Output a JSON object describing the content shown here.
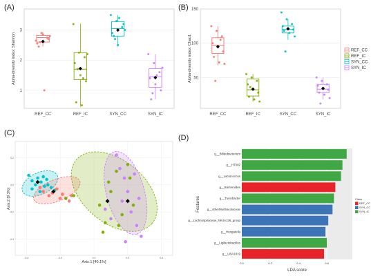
{
  "chart_data": [
    {
      "panel": "(A)",
      "type": "box",
      "ylabel": "Alpha-diversity index: Shannon",
      "yticks": [
        1,
        2,
        3
      ],
      "ylim": [
        0.4,
        3.7
      ],
      "categories": [
        "REF_CC",
        "REF_IC",
        "SYN_CC",
        "SYN_IC"
      ],
      "colors": [
        "#F8766D",
        "#7CAE00",
        "#00BFC4",
        "#C77CFF"
      ],
      "boxes": [
        {
          "q1": 2.6,
          "median": 2.75,
          "q3": 2.82,
          "whisker_low": 2.45,
          "whisker_high": 2.93,
          "mean": 2.62
        },
        {
          "q1": 1.35,
          "median": 1.7,
          "q3": 2.25,
          "whisker_low": 0.45,
          "whisker_high": 3.22,
          "mean": 1.72
        },
        {
          "q1": 2.8,
          "median": 3.05,
          "q3": 3.28,
          "whisker_low": 2.45,
          "whisker_high": 3.5,
          "mean": 3.0
        },
        {
          "q1": 1.1,
          "median": 1.45,
          "q3": 1.72,
          "whisker_low": 0.7,
          "whisker_high": 2.2,
          "mean": 1.42
        }
      ],
      "points": [
        [
          2.65,
          2.9,
          2.75,
          2.55,
          2.85,
          2.7,
          2.45,
          1.0,
          2.8,
          2.6
        ],
        [
          3.2,
          2.25,
          2.1,
          1.9,
          1.5,
          1.3,
          0.6,
          0.5,
          2.2,
          1.7,
          1.4
        ],
        [
          3.5,
          3.3,
          3.1,
          2.9,
          2.5,
          3.2,
          2.8,
          3.4,
          3.0,
          2.7
        ],
        [
          2.2,
          1.9,
          1.6,
          1.4,
          1.2,
          1.0,
          0.7,
          1.5,
          1.75,
          0.9
        ]
      ]
    },
    {
      "panel": "(B)",
      "type": "box",
      "ylabel": "Alpha-diversity index: Chao1",
      "yticks": [
        50,
        100,
        150
      ],
      "ylim": [
        5,
        150
      ],
      "categories": [
        "REF_CC",
        "REF_IC",
        "SYN_CC",
        "SYN_IC"
      ],
      "colors": [
        "#F8766D",
        "#7CAE00",
        "#00BFC4",
        "#C77CFF"
      ],
      "boxes": [
        {
          "q1": 85,
          "median": 97,
          "q3": 108,
          "whisker_low": 68,
          "whisker_high": 125,
          "mean": 95
        },
        {
          "q1": 23,
          "median": 32,
          "q3": 48,
          "whisker_low": 15,
          "whisker_high": 55,
          "mean": 33
        },
        {
          "q1": 115,
          "median": 120,
          "q3": 125,
          "whisker_low": 105,
          "whisker_high": 135,
          "mean": 121
        },
        {
          "q1": 28,
          "median": 33,
          "q3": 40,
          "whisker_low": 18,
          "whisker_high": 50,
          "mean": 34
        }
      ],
      "points": [
        [
          125,
          118,
          110,
          100,
          95,
          88,
          80,
          72,
          70,
          45,
          105
        ],
        [
          55,
          50,
          45,
          40,
          32,
          28,
          22,
          18,
          15,
          36
        ],
        [
          145,
          135,
          128,
          125,
          122,
          120,
          118,
          115,
          110,
          88
        ],
        [
          50,
          45,
          40,
          38,
          35,
          32,
          28,
          25,
          20,
          12
        ]
      ],
      "legend": {
        "entries": [
          "REF_CC",
          "REF_IC",
          "SYN_CC",
          "SYN_IC"
        ],
        "placement": "right"
      }
    },
    {
      "panel": "(C)",
      "type": "scatter",
      "xlabel": "Axis.1   [40.1%]",
      "ylabel": "Axis.2   [9.3%]",
      "xticks": [
        -0.6,
        -0.3,
        0.0,
        0.3,
        0.6
      ],
      "yticks": [
        -0.4,
        -0.2,
        0.0,
        0.2
      ],
      "xlim": [
        -0.7,
        0.7
      ],
      "ylim": [
        -0.52,
        0.32
      ],
      "groups": [
        {
          "color": "#00BFC4",
          "points": [
            [
              -0.58,
              0.07
            ],
            [
              -0.55,
              0.03
            ],
            [
              -0.52,
              0.0
            ],
            [
              -0.5,
              0.05
            ],
            [
              -0.47,
              0.02
            ],
            [
              -0.44,
              -0.01
            ],
            [
              -0.41,
              0.0
            ],
            [
              -0.38,
              -0.02
            ],
            [
              -0.35,
              -0.04
            ],
            [
              -0.45,
              0.06
            ],
            [
              -0.55,
              -0.03
            ],
            [
              -0.48,
              -0.05
            ],
            [
              -0.42,
              0.04
            ]
          ]
        },
        {
          "color": "#F8766D",
          "points": [
            [
              -0.48,
              -0.02
            ],
            [
              -0.45,
              -0.05
            ],
            [
              -0.4,
              -0.08
            ],
            [
              -0.37,
              -0.06
            ],
            [
              -0.33,
              -0.03
            ],
            [
              -0.28,
              -0.07
            ],
            [
              -0.25,
              -0.1
            ],
            [
              -0.2,
              -0.08
            ],
            [
              -0.3,
              -0.1
            ],
            [
              -0.22,
              -0.12
            ]
          ]
        },
        {
          "color": "#7CAE00",
          "points": [
            [
              -0.25,
              -0.1
            ],
            [
              -0.18,
              -0.08
            ],
            [
              0.05,
              -0.15
            ],
            [
              0.08,
              -0.35
            ],
            [
              0.1,
              -0.28
            ],
            [
              0.15,
              -0.05
            ],
            [
              0.2,
              0.1
            ],
            [
              0.25,
              -0.22
            ],
            [
              0.3,
              0.15
            ],
            [
              0.32,
              0.05
            ],
            [
              0.35,
              -0.15
            ],
            [
              0.22,
              -0.3
            ],
            [
              0.13,
              0.02
            ]
          ]
        },
        {
          "color": "#C77CFF",
          "points": [
            [
              0.1,
              -0.18
            ],
            [
              0.15,
              -0.25
            ],
            [
              0.2,
              0.22
            ],
            [
              0.23,
              0.12
            ],
            [
              0.27,
              0.05
            ],
            [
              0.3,
              -0.05
            ],
            [
              0.33,
              -0.2
            ],
            [
              0.38,
              -0.3
            ],
            [
              0.4,
              -0.1
            ],
            [
              0.36,
              0.08
            ],
            [
              0.28,
              -0.42
            ],
            [
              0.25,
              -0.12
            ],
            [
              0.42,
              -0.38
            ]
          ]
        }
      ],
      "ellipses": [
        {
          "color": "#00BFC4",
          "cx": -0.48,
          "cy": 0.01,
          "rx": 0.17,
          "ry": 0.08,
          "angle": -25
        },
        {
          "color": "#F8766D",
          "cx": -0.33,
          "cy": -0.04,
          "rx": 0.22,
          "ry": 0.08,
          "angle": -22
        },
        {
          "color": "#7CAE00",
          "cx": 0.18,
          "cy": -0.05,
          "rx": 0.44,
          "ry": 0.23,
          "angle": 40
        },
        {
          "color": "#C77CFF",
          "cx": 0.28,
          "cy": -0.06,
          "rx": 0.38,
          "ry": 0.14,
          "angle": 75
        }
      ],
      "centroids": [
        [
          -0.5,
          0.02
        ],
        [
          -0.36,
          -0.05
        ],
        [
          0.12,
          -0.12
        ],
        [
          0.3,
          -0.12
        ]
      ]
    },
    {
      "panel": "(D)",
      "type": "bar",
      "orientation": "horizontal",
      "xlabel": "LDA score",
      "ylabel": "Features",
      "xticks": [
        0.0,
        0.2,
        0.4,
        0.6
      ],
      "xlim": [
        0.0,
        0.78
      ],
      "categories": [
        "g__Bifidobacterium",
        "g__HT002",
        "g__Lactococcus",
        "g__Bacteroides",
        "g__Turicibacter",
        "g__otherMuribaculaceae",
        "g__Lachnospiraceae_NK4A136_group",
        "g__Hungatella",
        "g__Ligilactobacillus",
        "g__UBA1819"
      ],
      "values": [
        0.74,
        0.71,
        0.7,
        0.66,
        0.65,
        0.64,
        0.61,
        0.59,
        0.6,
        0.58
      ],
      "class": [
        "SYN_IC",
        "SYN_IC",
        "SYN_IC",
        "REF_CC",
        "SYN_IC",
        "SYN_CC",
        "SYN_CC",
        "SYN_CC",
        "SYN_IC",
        "REF_CC"
      ],
      "class_colors": {
        "REF_CC": "#E8242A",
        "SYN_CC": "#3C74B8",
        "SYN_IC": "#3FA845"
      },
      "legend": {
        "title": "Class",
        "entries": [
          "REF_CC",
          "SYN_CC",
          "SYN_IC"
        ],
        "placement": "right"
      }
    }
  ]
}
